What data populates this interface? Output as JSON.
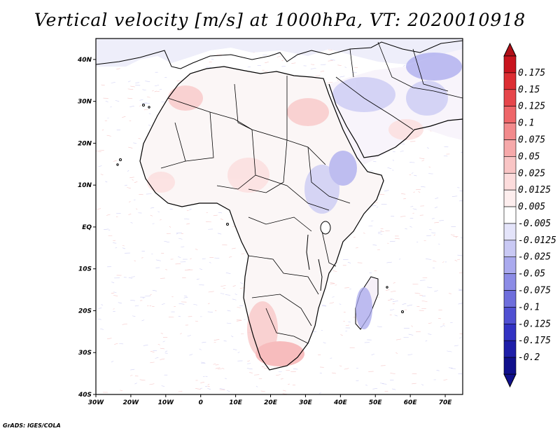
{
  "title": "Vertical velocity [m/s] at 1000hPa, VT: 2020010918",
  "credit": "GrADS: IGES/COLA",
  "map": {
    "lon_range": [
      -30,
      75
    ],
    "lat_range": [
      -40,
      45
    ],
    "lon_ticks": [
      {
        "value": -30,
        "label": "30W"
      },
      {
        "value": -20,
        "label": "20W"
      },
      {
        "value": -10,
        "label": "10W"
      },
      {
        "value": 0,
        "label": "0"
      },
      {
        "value": 10,
        "label": "10E"
      },
      {
        "value": 20,
        "label": "20E"
      },
      {
        "value": 30,
        "label": "30E"
      },
      {
        "value": 40,
        "label": "40E"
      },
      {
        "value": 50,
        "label": "50E"
      },
      {
        "value": 60,
        "label": "60E"
      },
      {
        "value": 70,
        "label": "70E"
      }
    ],
    "lat_ticks": [
      {
        "value": 40,
        "label": "40N"
      },
      {
        "value": 30,
        "label": "30N"
      },
      {
        "value": 20,
        "label": "20N"
      },
      {
        "value": 10,
        "label": "10N"
      },
      {
        "value": 0,
        "label": "EQ"
      },
      {
        "value": -10,
        "label": "10S"
      },
      {
        "value": -20,
        "label": "20S"
      },
      {
        "value": -30,
        "label": "30S"
      },
      {
        "value": -40,
        "label": "40S"
      }
    ]
  },
  "colorbar": {
    "levels": [
      {
        "label": "0.175",
        "color": "#c8141e"
      },
      {
        "label": "0.15",
        "color": "#dc2d32"
      },
      {
        "label": "0.125",
        "color": "#e6464b"
      },
      {
        "label": "0.1",
        "color": "#ee6669"
      },
      {
        "label": "0.075",
        "color": "#f28a8c"
      },
      {
        "label": "0.05",
        "color": "#f6a9aa"
      },
      {
        "label": "0.025",
        "color": "#f9c5c5"
      },
      {
        "label": "0.0125",
        "color": "#fcdcdc"
      },
      {
        "label": "0.005",
        "color": "#fdeeee"
      },
      {
        "label": "-0.005",
        "color": "#ffffff"
      },
      {
        "label": "-0.0125",
        "color": "#e4e4fa"
      },
      {
        "label": "-0.025",
        "color": "#c9c9f4"
      },
      {
        "label": "-0.05",
        "color": "#aaaaee"
      },
      {
        "label": "-0.075",
        "color": "#8c8ce6"
      },
      {
        "label": "-0.1",
        "color": "#6e6edc"
      },
      {
        "label": "-0.125",
        "color": "#5050d2"
      },
      {
        "label": "-0.175",
        "color": "#3232c3"
      },
      {
        "label": "-0.2",
        "color": "#1e1ea8"
      }
    ],
    "top_color": "#b01018",
    "bottom_color": "#10108c"
  }
}
